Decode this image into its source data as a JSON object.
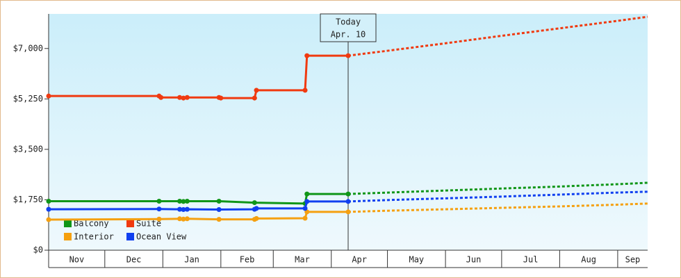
{
  "chart_data": {
    "type": "line",
    "xlim": [
      0,
      320
    ],
    "xticks": [
      {
        "value": 0,
        "label": "Nov"
      },
      {
        "value": 30,
        "label": "Dec"
      },
      {
        "value": 61,
        "label": "Jan"
      },
      {
        "value": 92,
        "label": "Feb"
      },
      {
        "value": 120,
        "label": "Mar"
      },
      {
        "value": 151,
        "label": "Apr"
      },
      {
        "value": 181,
        "label": "May"
      },
      {
        "value": 212,
        "label": "Jun"
      },
      {
        "value": 242,
        "label": "Jul"
      },
      {
        "value": 273,
        "label": "Aug"
      },
      {
        "value": 304,
        "label": "Sep"
      }
    ],
    "ylim": [
      0,
      8200
    ],
    "yticks": [
      {
        "value": 0,
        "label": "$0"
      },
      {
        "value": 1750,
        "label": "$1,750"
      },
      {
        "value": 3500,
        "label": "$3,500"
      },
      {
        "value": 5250,
        "label": "$5,250"
      },
      {
        "value": 7000,
        "label": "$7,000"
      }
    ],
    "annotation": {
      "x": 160,
      "title": "Today",
      "label": "Apr. 10"
    },
    "legend": "lower-left",
    "series": [
      {
        "name": "Balcony",
        "color": "#109618",
        "x": [
          0,
          59,
          70,
          72,
          74,
          91,
          110,
          137,
          138,
          160,
          181,
          212,
          242,
          273,
          304,
          320
        ],
        "values": [
          1700,
          1700,
          1700,
          1690,
          1700,
          1700,
          1650,
          1620,
          1950,
          1950,
          2000,
          2070,
          2140,
          2210,
          2290,
          2340
        ]
      },
      {
        "name": "Suite",
        "color": "#f03a10",
        "x": [
          0,
          59,
          60,
          70,
          72,
          74,
          91,
          92,
          110,
          111,
          137,
          138,
          160,
          181,
          212,
          242,
          273,
          304,
          320
        ],
        "values": [
          5350,
          5350,
          5300,
          5300,
          5280,
          5300,
          5300,
          5280,
          5280,
          5550,
          5550,
          6750,
          6750,
          6920,
          7180,
          7440,
          7700,
          7960,
          8100
        ]
      },
      {
        "name": "Interior",
        "color": "#f5a010",
        "x": [
          0,
          59,
          70,
          72,
          74,
          91,
          110,
          111,
          137,
          138,
          160,
          181,
          212,
          242,
          273,
          304,
          320
        ],
        "values": [
          1060,
          1080,
          1090,
          1080,
          1090,
          1070,
          1070,
          1100,
          1110,
          1330,
          1330,
          1370,
          1420,
          1470,
          1520,
          1580,
          1620
        ]
      },
      {
        "name": "Ocean View",
        "color": "#1040f0",
        "x": [
          0,
          59,
          70,
          72,
          74,
          91,
          110,
          111,
          137,
          138,
          160,
          181,
          212,
          242,
          273,
          304,
          320
        ],
        "values": [
          1420,
          1430,
          1420,
          1410,
          1420,
          1410,
          1420,
          1450,
          1450,
          1690,
          1690,
          1740,
          1800,
          1860,
          1930,
          2000,
          2030
        ]
      }
    ]
  }
}
